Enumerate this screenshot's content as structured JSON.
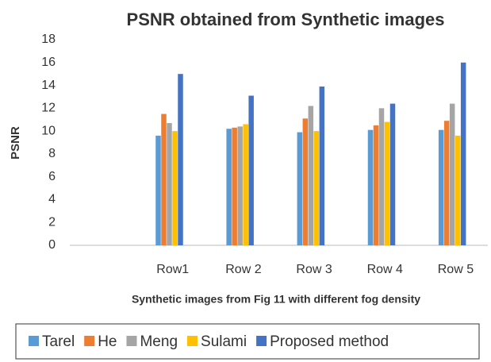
{
  "chart_data": {
    "type": "bar",
    "title": "PSNR  obtained from Synthetic  images",
    "x_label": "Synthetic images from Fig 11 with different fog density",
    "y_label": "PSNR",
    "categories": [
      null,
      "Row1",
      "Row 2",
      "Row 3",
      "Row 4",
      "Row 5"
    ],
    "series": [
      {
        "name": "Tarel",
        "color": "#5b9bd5",
        "values": [
          null,
          9.6,
          10.2,
          9.9,
          10.1,
          10.1
        ]
      },
      {
        "name": "He",
        "color": "#ed7d31",
        "values": [
          null,
          11.5,
          10.3,
          11.1,
          10.5,
          10.9
        ]
      },
      {
        "name": "Meng",
        "color": "#a5a5a5",
        "values": [
          null,
          10.7,
          10.4,
          12.2,
          12.0,
          12.4
        ]
      },
      {
        "name": "Sulami",
        "color": "#ffc000",
        "values": [
          null,
          10.0,
          10.6,
          10.0,
          10.8,
          9.6
        ]
      },
      {
        "name": "Proposed method",
        "color": "#4472c4",
        "values": [
          null,
          15.0,
          13.1,
          13.9,
          12.4,
          16.0
        ]
      }
    ],
    "ylim": [
      0,
      18
    ],
    "yticks": [
      0,
      2,
      4,
      6,
      8,
      10,
      12,
      14,
      16,
      18
    ],
    "grid": false,
    "legend": "bottom"
  }
}
